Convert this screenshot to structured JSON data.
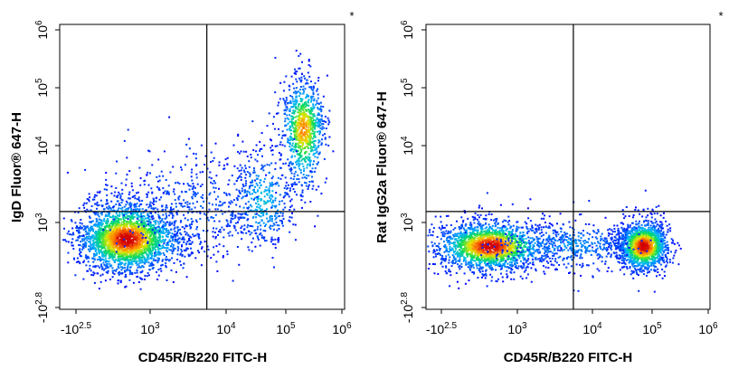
{
  "chart_data": [
    {
      "type": "scatter",
      "subtype": "flow-cytometry-density",
      "corner_mark": "*",
      "xlabel": "CD45R/B220 FITC-H",
      "ylabel": "IgD Fluor® 647-H",
      "x_ticks": [
        {
          "base": "-10",
          "exp": "2.5",
          "value": -316
        },
        {
          "base": "10",
          "exp": "3",
          "value": 1000
        },
        {
          "base": "10",
          "exp": "4",
          "value": 10000
        },
        {
          "base": "10",
          "exp": "5",
          "value": 100000
        },
        {
          "base": "10",
          "exp": "6",
          "value": 1000000
        }
      ],
      "y_ticks": [
        {
          "base": "-10",
          "exp": "2.8",
          "value": -631
        },
        {
          "base": "10",
          "exp": "3",
          "value": 1000
        },
        {
          "base": "10",
          "exp": "4",
          "value": 10000
        },
        {
          "base": "10",
          "exp": "5",
          "value": 100000
        },
        {
          "base": "10",
          "exp": "6",
          "value": 1000000
        }
      ],
      "scale": "biexponential",
      "gate": {
        "x": 5600,
        "y": 1400
      },
      "populations": [
        {
          "x": 350,
          "y": 500,
          "sx": 0.42,
          "sy": 0.3,
          "n": 2600,
          "w": 1.0
        },
        {
          "x": 200000,
          "y": 20000,
          "sx": 0.2,
          "sy": 0.45,
          "n": 900,
          "w": 0.8
        },
        {
          "x": 40000,
          "y": 2000,
          "sx": 0.28,
          "sy": 0.35,
          "n": 400,
          "w": 0.3
        },
        {
          "x": 4000,
          "y": 1600,
          "sx": 0.6,
          "sy": 0.4,
          "n": 450,
          "w": 0.1
        }
      ]
    },
    {
      "type": "scatter",
      "subtype": "flow-cytometry-density",
      "corner_mark": "*",
      "xlabel": "CD45R/B220 FITC-H",
      "ylabel": "Rat IgG2a Fluor® 647-H",
      "x_ticks": [
        {
          "base": "-10",
          "exp": "2.5",
          "value": -316
        },
        {
          "base": "10",
          "exp": "3",
          "value": 1000
        },
        {
          "base": "10",
          "exp": "4",
          "value": 10000
        },
        {
          "base": "10",
          "exp": "5",
          "value": 100000
        },
        {
          "base": "10",
          "exp": "6",
          "value": 1000000
        }
      ],
      "y_ticks": [
        {
          "base": "-10",
          "exp": "2.8",
          "value": -631
        },
        {
          "base": "10",
          "exp": "3",
          "value": 1000
        },
        {
          "base": "10",
          "exp": "4",
          "value": 10000
        },
        {
          "base": "10",
          "exp": "5",
          "value": 100000
        },
        {
          "base": "10",
          "exp": "6",
          "value": 1000000
        }
      ],
      "scale": "biexponential",
      "gate": {
        "x": 5600,
        "y": 1400
      },
      "populations": [
        {
          "x": 300,
          "y": 350,
          "sx": 0.45,
          "sy": 0.22,
          "n": 2000,
          "w": 1.0
        },
        {
          "x": 70000,
          "y": 350,
          "sx": 0.22,
          "sy": 0.22,
          "n": 1500,
          "w": 1.0
        },
        {
          "x": 5000,
          "y": 380,
          "sx": 0.55,
          "sy": 0.22,
          "n": 500,
          "w": 0.2
        }
      ]
    }
  ]
}
